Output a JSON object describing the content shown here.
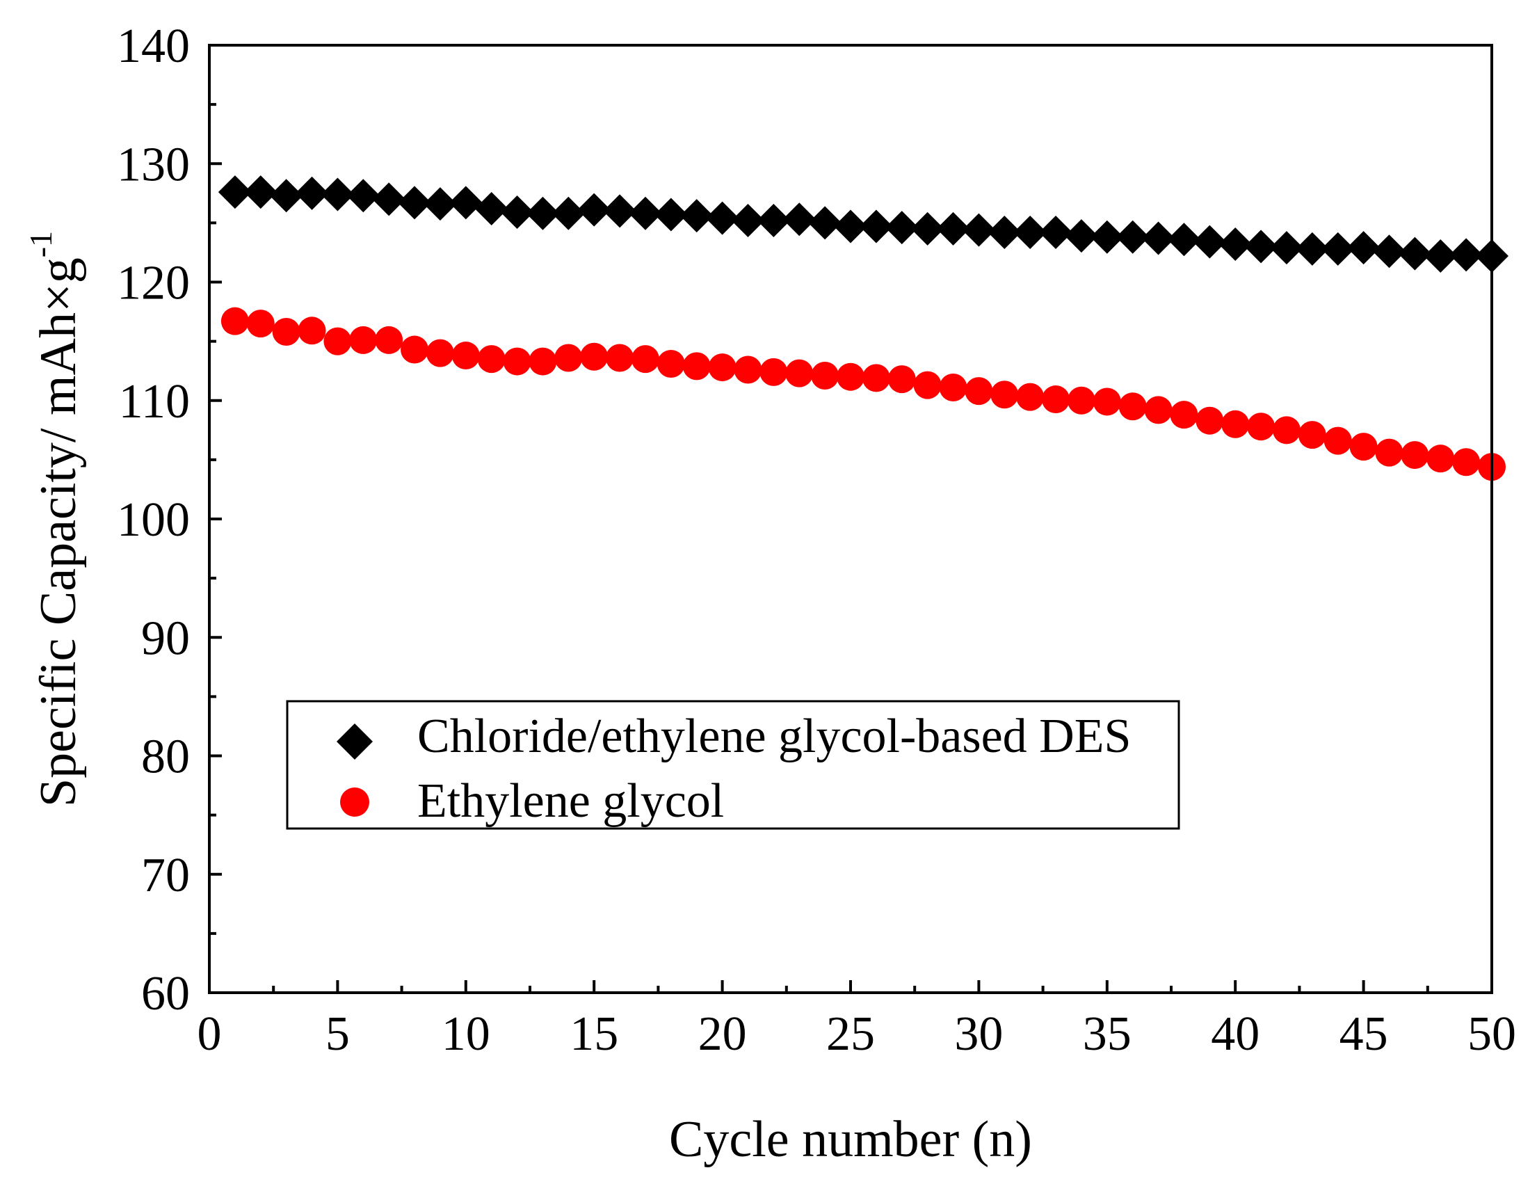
{
  "chart_data": {
    "type": "scatter",
    "title": "",
    "xlabel": "Cycle number (n)",
    "ylabel_main": "Specific Capacity/ mAh×g",
    "ylabel_sup": "-1",
    "xlim": [
      0,
      50
    ],
    "ylim": [
      60,
      140
    ],
    "xticks": [
      0,
      5,
      10,
      15,
      20,
      25,
      30,
      35,
      40,
      45,
      50
    ],
    "xtick_labels": [
      "0",
      "5",
      "10",
      "15",
      "20",
      "25",
      "30",
      "35",
      "40",
      "45",
      "50"
    ],
    "yticks": [
      60,
      70,
      80,
      90,
      100,
      110,
      120,
      130,
      140
    ],
    "ytick_labels": [
      "60",
      "70",
      "80",
      "90",
      "100",
      "110",
      "120",
      "130",
      "140"
    ],
    "grid": false,
    "legend_position": "lower-center",
    "x": [
      1,
      2,
      3,
      4,
      5,
      6,
      7,
      8,
      9,
      10,
      11,
      12,
      13,
      14,
      15,
      16,
      17,
      18,
      19,
      20,
      21,
      22,
      23,
      24,
      25,
      26,
      27,
      28,
      29,
      30,
      31,
      32,
      33,
      34,
      35,
      36,
      37,
      38,
      39,
      40,
      41,
      42,
      43,
      44,
      45,
      46,
      47,
      48,
      49,
      50
    ],
    "series": [
      {
        "name": "Chloride/ethylene glycol-based DES",
        "marker": "diamond",
        "color": "#000000",
        "values": [
          127.6,
          127.6,
          127.3,
          127.5,
          127.4,
          127.3,
          127.0,
          126.7,
          126.6,
          126.7,
          126.2,
          125.9,
          125.8,
          125.8,
          126.1,
          126.0,
          125.8,
          125.7,
          125.6,
          125.4,
          125.2,
          125.2,
          125.3,
          125.0,
          124.7,
          124.7,
          124.6,
          124.5,
          124.5,
          124.4,
          124.2,
          124.2,
          124.2,
          123.9,
          123.8,
          123.8,
          123.7,
          123.6,
          123.4,
          123.2,
          123.0,
          122.9,
          122.8,
          122.8,
          122.9,
          122.6,
          122.4,
          122.2,
          122.3,
          122.2
        ]
      },
      {
        "name": "Ethylene glycol",
        "marker": "circle",
        "color": "#ff0000",
        "values": [
          116.7,
          116.5,
          115.8,
          115.9,
          115.0,
          115.1,
          115.1,
          114.3,
          114.0,
          113.8,
          113.5,
          113.3,
          113.3,
          113.6,
          113.7,
          113.6,
          113.5,
          113.1,
          112.9,
          112.8,
          112.6,
          112.4,
          112.3,
          112.1,
          112.0,
          111.9,
          111.8,
          111.3,
          111.1,
          110.8,
          110.5,
          110.3,
          110.1,
          110.0,
          109.9,
          109.5,
          109.2,
          108.8,
          108.3,
          108.0,
          107.8,
          107.5,
          107.1,
          106.6,
          106.1,
          105.6,
          105.4,
          105.1,
          104.8,
          104.4
        ]
      }
    ]
  }
}
